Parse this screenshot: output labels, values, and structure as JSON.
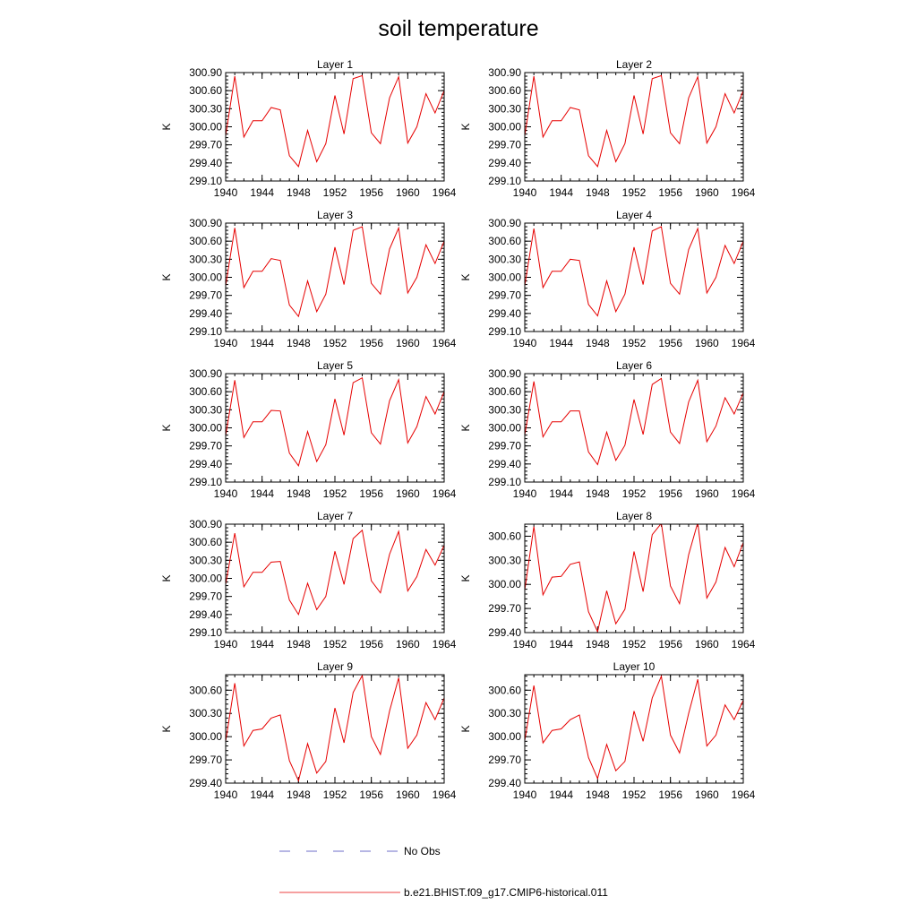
{
  "title": "soil temperature",
  "legend": {
    "items": [
      {
        "label": "No Obs",
        "style": "dashed",
        "color": "#6e6ec8"
      },
      {
        "label": "b.e21.BHIST.f09_g17.CMIP6-historical.011",
        "style": "solid",
        "color": "#e60000"
      }
    ]
  },
  "chart_data": [
    {
      "type": "line",
      "title": "Layer 1",
      "ylabel": "K",
      "x": [
        1940,
        1941,
        1942,
        1943,
        1944,
        1945,
        1946,
        1947,
        1948,
        1949,
        1950,
        1951,
        1952,
        1953,
        1954,
        1955,
        1956,
        1957,
        1958,
        1959,
        1960,
        1961,
        1962,
        1963,
        1964
      ],
      "xticks": [
        1940,
        1944,
        1948,
        1952,
        1956,
        1960,
        1964
      ],
      "ylim": [
        299.1,
        300.9
      ],
      "yticks": [
        "299.10",
        "299.40",
        "299.70",
        "300.00",
        "300.30",
        "300.60",
        "300.90"
      ],
      "series": [
        {
          "values": [
            299.85,
            300.84,
            299.83,
            300.1,
            300.1,
            300.32,
            300.28,
            299.52,
            299.34,
            299.94,
            299.42,
            299.72,
            300.52,
            299.88,
            300.8,
            300.85,
            299.9,
            299.72,
            300.48,
            300.83,
            299.73,
            300.0,
            300.55,
            300.23,
            300.6
          ],
          "color": "#e60000"
        }
      ]
    },
    {
      "type": "line",
      "title": "Layer 2",
      "ylabel": "K",
      "x": [
        1940,
        1941,
        1942,
        1943,
        1944,
        1945,
        1946,
        1947,
        1948,
        1949,
        1950,
        1951,
        1952,
        1953,
        1954,
        1955,
        1956,
        1957,
        1958,
        1959,
        1960,
        1961,
        1962,
        1963,
        1964
      ],
      "xticks": [
        1940,
        1944,
        1948,
        1952,
        1956,
        1960,
        1964
      ],
      "ylim": [
        299.1,
        300.9
      ],
      "yticks": [
        "299.10",
        "299.40",
        "299.70",
        "300.00",
        "300.30",
        "300.60",
        "300.90"
      ],
      "series": [
        {
          "values": [
            299.85,
            300.84,
            299.83,
            300.1,
            300.1,
            300.32,
            300.28,
            299.52,
            299.34,
            299.94,
            299.42,
            299.72,
            300.52,
            299.88,
            300.8,
            300.85,
            299.9,
            299.72,
            300.48,
            300.83,
            299.73,
            300.0,
            300.55,
            300.23,
            300.6
          ],
          "color": "#e60000"
        }
      ]
    },
    {
      "type": "line",
      "title": "Layer 3",
      "ylabel": "K",
      "x": [
        1940,
        1941,
        1942,
        1943,
        1944,
        1945,
        1946,
        1947,
        1948,
        1949,
        1950,
        1951,
        1952,
        1953,
        1954,
        1955,
        1956,
        1957,
        1958,
        1959,
        1960,
        1961,
        1962,
        1963,
        1964
      ],
      "xticks": [
        1940,
        1944,
        1948,
        1952,
        1956,
        1960,
        1964
      ],
      "ylim": [
        299.1,
        300.9
      ],
      "yticks": [
        "299.10",
        "299.40",
        "299.70",
        "300.00",
        "300.30",
        "300.60",
        "300.90"
      ],
      "series": [
        {
          "values": [
            299.86,
            300.82,
            299.83,
            300.1,
            300.1,
            300.31,
            300.28,
            299.54,
            299.35,
            299.94,
            299.43,
            299.72,
            300.5,
            299.88,
            300.78,
            300.84,
            299.9,
            299.72,
            300.47,
            300.82,
            299.74,
            300.0,
            300.54,
            300.23,
            300.6
          ],
          "color": "#e60000"
        }
      ]
    },
    {
      "type": "line",
      "title": "Layer 4",
      "ylabel": "K",
      "x": [
        1940,
        1941,
        1942,
        1943,
        1944,
        1945,
        1946,
        1947,
        1948,
        1949,
        1950,
        1951,
        1952,
        1953,
        1954,
        1955,
        1956,
        1957,
        1958,
        1959,
        1960,
        1961,
        1962,
        1963,
        1964
      ],
      "xticks": [
        1940,
        1944,
        1948,
        1952,
        1956,
        1960,
        1964
      ],
      "ylim": [
        299.1,
        300.9
      ],
      "yticks": [
        "299.10",
        "299.40",
        "299.70",
        "300.00",
        "300.30",
        "300.60",
        "300.90"
      ],
      "series": [
        {
          "values": [
            299.86,
            300.81,
            299.83,
            300.1,
            300.1,
            300.3,
            300.28,
            299.55,
            299.36,
            299.94,
            299.43,
            299.72,
            300.5,
            299.88,
            300.77,
            300.84,
            299.9,
            299.72,
            300.46,
            300.81,
            299.74,
            300.0,
            300.53,
            300.23,
            300.6
          ],
          "color": "#e60000"
        }
      ]
    },
    {
      "type": "line",
      "title": "Layer 5",
      "ylabel": "K",
      "x": [
        1940,
        1941,
        1942,
        1943,
        1944,
        1945,
        1946,
        1947,
        1948,
        1949,
        1950,
        1951,
        1952,
        1953,
        1954,
        1955,
        1956,
        1957,
        1958,
        1959,
        1960,
        1961,
        1962,
        1963,
        1964
      ],
      "xticks": [
        1940,
        1944,
        1948,
        1952,
        1956,
        1960,
        1964
      ],
      "ylim": [
        299.1,
        300.9
      ],
      "yticks": [
        "299.10",
        "299.40",
        "299.70",
        "300.00",
        "300.30",
        "300.60",
        "300.90"
      ],
      "series": [
        {
          "values": [
            299.87,
            300.79,
            299.84,
            300.1,
            300.1,
            300.29,
            300.28,
            299.58,
            299.37,
            299.94,
            299.44,
            299.72,
            300.48,
            299.88,
            300.75,
            300.83,
            299.92,
            299.73,
            300.45,
            300.8,
            299.75,
            300.02,
            300.52,
            300.23,
            300.6
          ],
          "color": "#e60000"
        }
      ]
    },
    {
      "type": "line",
      "title": "Layer 6",
      "ylabel": "K",
      "x": [
        1940,
        1941,
        1942,
        1943,
        1944,
        1945,
        1946,
        1947,
        1948,
        1949,
        1950,
        1951,
        1952,
        1953,
        1954,
        1955,
        1956,
        1957,
        1958,
        1959,
        1960,
        1961,
        1962,
        1963,
        1964
      ],
      "xticks": [
        1940,
        1944,
        1948,
        1952,
        1956,
        1960,
        1964
      ],
      "ylim": [
        299.1,
        300.9
      ],
      "yticks": [
        "299.10",
        "299.40",
        "299.70",
        "300.00",
        "300.30",
        "300.60",
        "300.90"
      ],
      "series": [
        {
          "values": [
            299.88,
            300.77,
            299.85,
            300.1,
            300.1,
            300.28,
            300.28,
            299.6,
            299.39,
            299.93,
            299.46,
            299.71,
            300.47,
            299.89,
            300.72,
            300.82,
            299.93,
            299.74,
            300.43,
            300.79,
            299.77,
            300.03,
            300.5,
            300.23,
            300.58
          ],
          "color": "#e60000"
        }
      ]
    },
    {
      "type": "line",
      "title": "Layer 7",
      "ylabel": "K",
      "x": [
        1940,
        1941,
        1942,
        1943,
        1944,
        1945,
        1946,
        1947,
        1948,
        1949,
        1950,
        1951,
        1952,
        1953,
        1954,
        1955,
        1956,
        1957,
        1958,
        1959,
        1960,
        1961,
        1962,
        1963,
        1964
      ],
      "xticks": [
        1940,
        1944,
        1948,
        1952,
        1956,
        1960,
        1964
      ],
      "ylim": [
        299.1,
        300.9
      ],
      "yticks": [
        "299.10",
        "299.40",
        "299.70",
        "300.00",
        "300.30",
        "300.60",
        "300.90"
      ],
      "series": [
        {
          "values": [
            299.9,
            300.75,
            299.86,
            300.1,
            300.1,
            300.27,
            300.28,
            299.64,
            299.4,
            299.92,
            299.48,
            299.7,
            300.45,
            299.9,
            300.66,
            300.8,
            299.96,
            299.76,
            300.4,
            300.78,
            299.79,
            300.03,
            300.48,
            300.22,
            300.55
          ],
          "color": "#e60000"
        }
      ]
    },
    {
      "type": "line",
      "title": "Layer 8",
      "ylabel": "K",
      "x": [
        1940,
        1941,
        1942,
        1943,
        1944,
        1945,
        1946,
        1947,
        1948,
        1949,
        1950,
        1951,
        1952,
        1953,
        1954,
        1955,
        1956,
        1957,
        1958,
        1959,
        1960,
        1961,
        1962,
        1963,
        1964
      ],
      "xticks": [
        1940,
        1944,
        1948,
        1952,
        1956,
        1960,
        1964
      ],
      "ylim": [
        299.4,
        300.75
      ],
      "yticks": [
        "299.40",
        "299.70",
        "300.00",
        "300.30",
        "300.60"
      ],
      "series": [
        {
          "values": [
            299.93,
            300.72,
            299.87,
            300.09,
            300.1,
            300.25,
            300.28,
            299.66,
            299.41,
            299.92,
            299.51,
            299.69,
            300.41,
            299.91,
            300.62,
            300.76,
            299.98,
            299.76,
            300.37,
            300.77,
            299.83,
            300.03,
            300.46,
            300.22,
            300.52
          ],
          "color": "#e60000"
        }
      ]
    },
    {
      "type": "line",
      "title": "Layer 9",
      "ylabel": "K",
      "x": [
        1940,
        1941,
        1942,
        1943,
        1944,
        1945,
        1946,
        1947,
        1948,
        1949,
        1950,
        1951,
        1952,
        1953,
        1954,
        1955,
        1956,
        1957,
        1958,
        1959,
        1960,
        1961,
        1962,
        1963,
        1964
      ],
      "xticks": [
        1940,
        1944,
        1948,
        1952,
        1956,
        1960,
        1964
      ],
      "ylim": [
        299.4,
        300.8
      ],
      "yticks": [
        "299.40",
        "299.70",
        "300.00",
        "300.30",
        "300.60"
      ],
      "series": [
        {
          "values": [
            299.94,
            300.69,
            299.88,
            300.08,
            300.1,
            300.24,
            300.28,
            299.69,
            299.43,
            299.91,
            299.53,
            299.68,
            300.37,
            299.92,
            300.57,
            300.79,
            300.0,
            299.77,
            300.33,
            300.76,
            299.85,
            300.02,
            300.44,
            300.22,
            300.5
          ],
          "color": "#e60000"
        }
      ]
    },
    {
      "type": "line",
      "title": "Layer 10",
      "ylabel": "K",
      "x": [
        1940,
        1941,
        1942,
        1943,
        1944,
        1945,
        1946,
        1947,
        1948,
        1949,
        1950,
        1951,
        1952,
        1953,
        1954,
        1955,
        1956,
        1957,
        1958,
        1959,
        1960,
        1961,
        1962,
        1963,
        1964
      ],
      "xticks": [
        1940,
        1944,
        1948,
        1952,
        1956,
        1960,
        1964
      ],
      "ylim": [
        299.4,
        300.8
      ],
      "yticks": [
        "299.40",
        "299.70",
        "300.00",
        "300.30",
        "300.60"
      ],
      "series": [
        {
          "values": [
            299.95,
            300.66,
            299.92,
            300.08,
            300.1,
            300.22,
            300.28,
            299.73,
            299.46,
            299.9,
            299.56,
            299.68,
            300.33,
            299.94,
            300.5,
            300.78,
            300.02,
            299.79,
            300.3,
            300.74,
            299.88,
            300.02,
            300.41,
            300.22,
            300.47
          ],
          "color": "#e60000"
        }
      ]
    }
  ]
}
